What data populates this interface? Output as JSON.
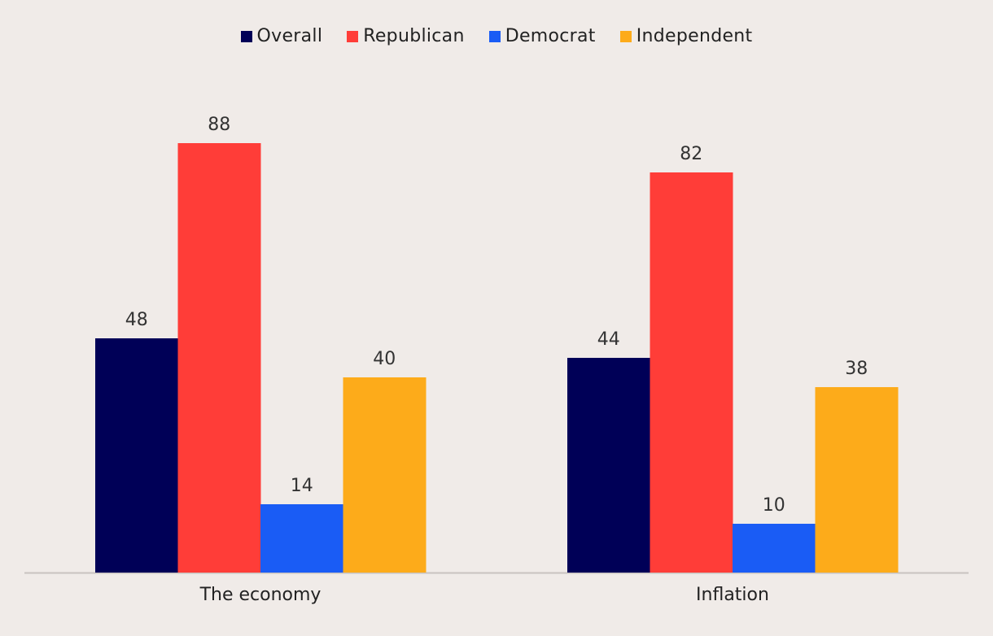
{
  "chart_data": {
    "type": "bar",
    "categories": [
      "The economy",
      "Inflation"
    ],
    "series": [
      {
        "name": "Overall",
        "values": [
          48,
          44
        ],
        "color": "#000057"
      },
      {
        "name": "Republican",
        "values": [
          88,
          82
        ],
        "color": "#ff3d38"
      },
      {
        "name": "Democrat",
        "values": [
          14,
          10
        ],
        "color": "#1a5cf5"
      },
      {
        "name": "Independent",
        "values": [
          40,
          38
        ],
        "color": "#fdab1a"
      }
    ],
    "title": "",
    "xlabel": "",
    "ylabel": "",
    "ylim": [
      0,
      100
    ],
    "grid": false,
    "legend_position": "top-center",
    "data_labels": true
  }
}
